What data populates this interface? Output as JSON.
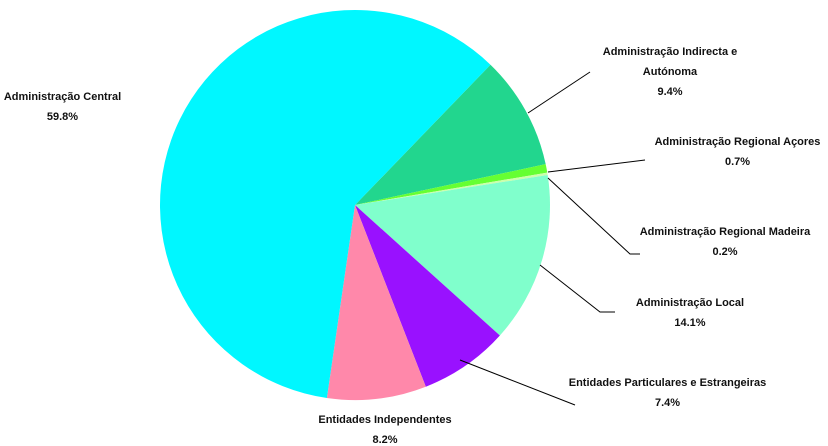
{
  "chart_data": {
    "type": "pie",
    "categories": [
      "Administração Indirecta e Autónoma",
      "Administração Regional Açores",
      "Administração Regional Madeira",
      "Administração Local",
      "Entidades Particulares e Estrangeiras",
      "Entidades Independentes",
      "Administração Central"
    ],
    "values": [
      9.4,
      0.7,
      0.2,
      14.1,
      7.4,
      8.2,
      59.8
    ],
    "value_labels": [
      "9.4%",
      "0.7%",
      "0.2%",
      "14.1%",
      "7.4%",
      "8.2%",
      "59.8%"
    ],
    "colors": [
      "#22d68e",
      "#66ff33",
      "#ccffaa",
      "#80ffcc",
      "#9911ff",
      "#ff88aa",
      "#00f7ff"
    ]
  }
}
